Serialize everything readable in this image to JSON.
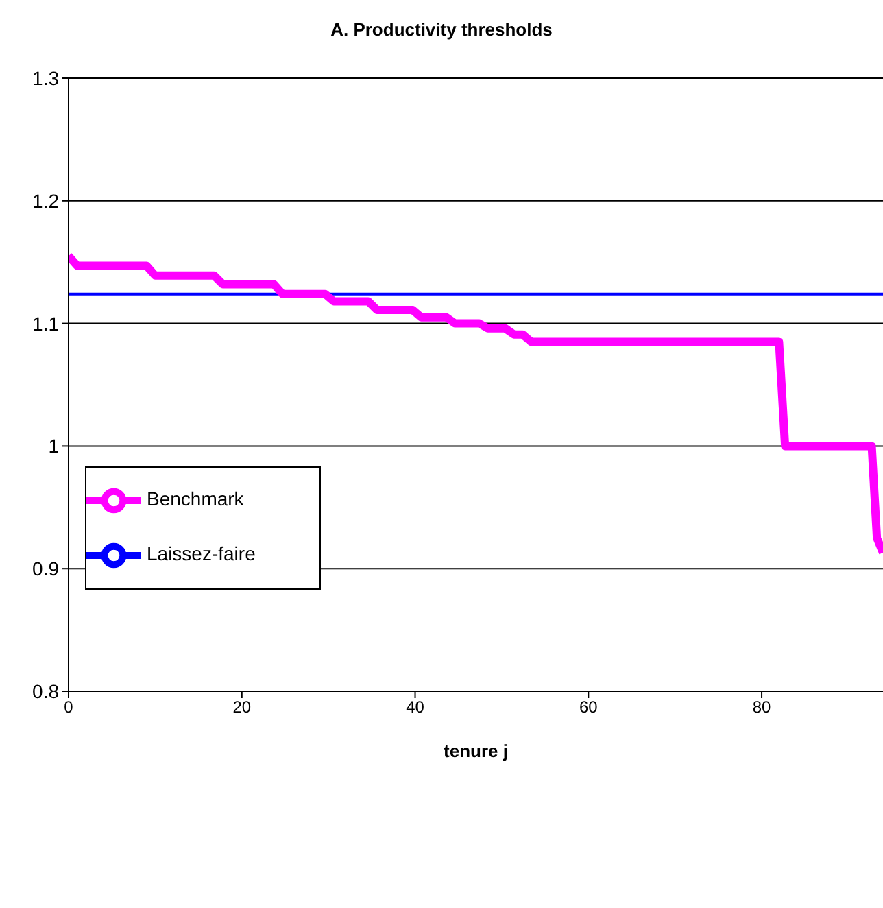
{
  "chart_data": {
    "type": "line",
    "title": "A. Productivity thresholds",
    "xlabel": "tenure j",
    "xlim": [
      0,
      94
    ],
    "xticks": [
      0,
      20,
      40,
      60,
      80
    ],
    "ylim": [
      0.8,
      1.3
    ],
    "yticks": [
      0.8,
      0.9,
      1,
      1.1,
      1.2,
      1.3
    ],
    "grid": "y",
    "legend": "left",
    "marker": "none",
    "line_style": "solid",
    "series": [
      {
        "name": "Laissez-faire",
        "color": "#0000ff",
        "x": [
          0,
          94
        ],
        "values": [
          1.124,
          1.124
        ]
      },
      {
        "name": "Benchmark",
        "color": "#ff00ff",
        "x": [
          0,
          1,
          9,
          10,
          16.8,
          17.8,
          23.7,
          24.7,
          29.6,
          30.6,
          34.6,
          35.6,
          39.7,
          40.7,
          43.6,
          44.6,
          47.4,
          48.4,
          50.4,
          51.4,
          52.4,
          53.4,
          82,
          82.7,
          92.7,
          93.3,
          94
        ],
        "values": [
          1.155,
          1.147,
          1.147,
          1.139,
          1.139,
          1.132,
          1.132,
          1.124,
          1.124,
          1.118,
          1.118,
          1.111,
          1.111,
          1.105,
          1.105,
          1.1,
          1.1,
          1.096,
          1.096,
          1.091,
          1.091,
          1.085,
          1.085,
          1,
          1,
          0.925,
          0.913
        ]
      }
    ]
  }
}
